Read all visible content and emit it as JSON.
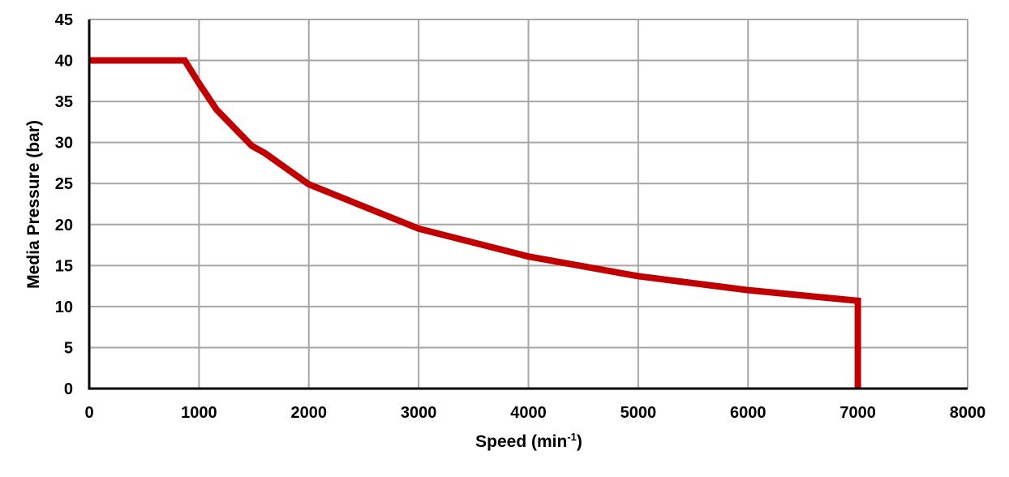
{
  "chart_data": {
    "type": "line",
    "title": "",
    "xlabel": "Speed (min",
    "xlabel_superscript": "-1",
    "xlabel_close": ")",
    "ylabel": "Media Pressure (bar)",
    "xlim": [
      0,
      8000
    ],
    "ylim": [
      0,
      45
    ],
    "xticks": [
      0,
      1000,
      2000,
      3000,
      4000,
      5000,
      6000,
      7000,
      8000
    ],
    "yticks": [
      0,
      5,
      10,
      15,
      20,
      25,
      30,
      35,
      40,
      45
    ],
    "grid": true,
    "legend": "none",
    "series": [
      {
        "color": "#C00000",
        "x": [
          0,
          870,
          1000,
          1160,
          1480,
          1600,
          2000,
          3000,
          4000,
          5000,
          6000,
          7000,
          7000
        ],
        "y": [
          40,
          40,
          37.2,
          34,
          29.6,
          28.7,
          24.9,
          19.5,
          16.1,
          13.7,
          12.0,
          10.7,
          0
        ]
      }
    ]
  }
}
